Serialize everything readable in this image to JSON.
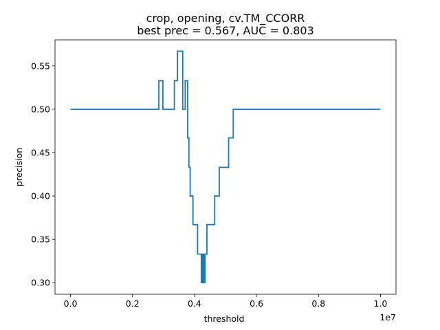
{
  "chart_data": {
    "type": "line",
    "title_lines": [
      "crop, opening, cv.TM_CCORR",
      "best prec = 0.567, AUC = 0.803"
    ],
    "xlabel": "threshold",
    "ylabel": "precision",
    "x_offset_label": "1e7",
    "x_scale": 10000000,
    "xlim": [
      -0.05,
      1.05
    ],
    "ylim": [
      0.2867,
      0.58
    ],
    "x_ticks": [
      0.0,
      0.2,
      0.4,
      0.6,
      0.8,
      1.0
    ],
    "x_tick_labels": [
      "0.0",
      "0.2",
      "0.4",
      "0.6",
      "0.8",
      "1.0"
    ],
    "y_ticks": [
      0.3,
      0.35,
      0.4,
      0.45,
      0.5,
      0.55
    ],
    "y_tick_labels": [
      "0.30",
      "0.35",
      "0.40",
      "0.45",
      "0.50",
      "0.55"
    ],
    "grid": false,
    "legend": "none",
    "series": [
      {
        "color": "#1f77b4",
        "step": "post",
        "x": [
          0.0,
          0.285,
          0.298,
          0.335,
          0.345,
          0.362,
          0.37,
          0.378,
          0.382,
          0.386,
          0.395,
          0.41,
          0.422,
          0.426,
          0.43,
          0.434,
          0.44,
          0.465,
          0.48,
          0.51,
          0.525,
          1.0
        ],
        "y": [
          0.5,
          0.533,
          0.5,
          0.533,
          0.567,
          0.5,
          0.533,
          0.467,
          0.433,
          0.4,
          0.367,
          0.333,
          0.3,
          0.333,
          0.3,
          0.333,
          0.367,
          0.4,
          0.433,
          0.467,
          0.5,
          0.5
        ]
      }
    ]
  }
}
